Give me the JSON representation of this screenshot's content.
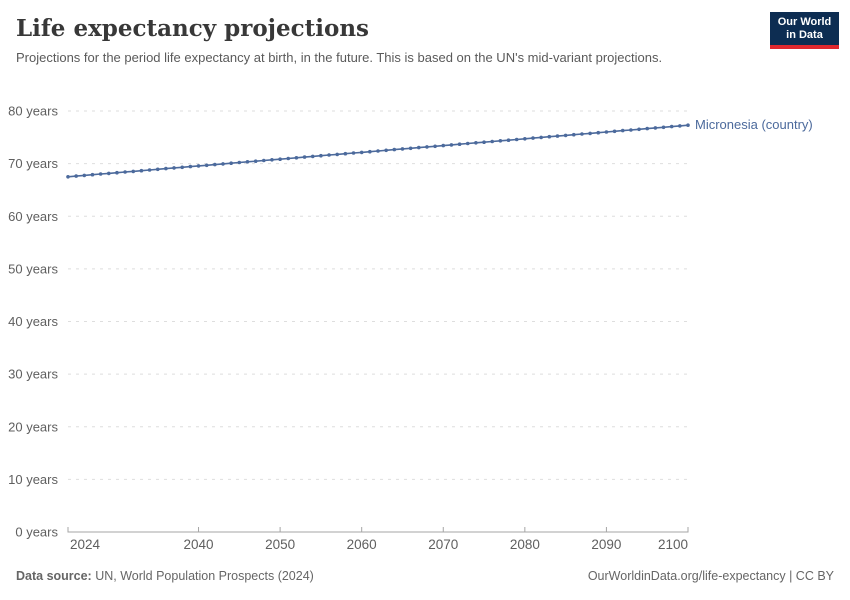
{
  "header": {
    "title": "Life expectancy projections",
    "subtitle": "Projections for the period life expectancy at birth, in the future. This is based on the UN's mid-variant projections.",
    "logo": {
      "line1": "Our World",
      "line2": "in Data"
    }
  },
  "footer": {
    "source_label": "Data source:",
    "source_text": " UN, World Population Prospects (2024)",
    "credit": "OurWorldinData.org/life-expectancy | CC BY"
  },
  "colors": {
    "line": "#4c6a9c",
    "series_label": "#4c6a9c",
    "grid": "#dedede",
    "axis": "#a5a5a5",
    "tick_text": "#5f5f5f",
    "logo_bg": "#0d2d52",
    "logo_red": "#e0282e"
  },
  "chart_data": {
    "type": "line",
    "title": "Life expectancy projections",
    "xlabel": "",
    "ylabel": "years",
    "xlim": [
      2024,
      2100
    ],
    "ylim": [
      0,
      80
    ],
    "grid": "horizontal-dashed",
    "legend_position": "end-of-line-label",
    "y_ticks": [
      0,
      10,
      20,
      30,
      40,
      50,
      60,
      70,
      80
    ],
    "y_tick_suffix": " years",
    "x_ticks": [
      2024,
      2040,
      2050,
      2060,
      2070,
      2080,
      2090,
      2100
    ],
    "series": [
      {
        "name": "Micronesia (country)",
        "x": [
          2024,
          2025,
          2026,
          2027,
          2028,
          2029,
          2030,
          2031,
          2032,
          2033,
          2034,
          2035,
          2036,
          2037,
          2038,
          2039,
          2040,
          2041,
          2042,
          2043,
          2044,
          2045,
          2046,
          2047,
          2048,
          2049,
          2050,
          2051,
          2052,
          2053,
          2054,
          2055,
          2056,
          2057,
          2058,
          2059,
          2060,
          2061,
          2062,
          2063,
          2064,
          2065,
          2066,
          2067,
          2068,
          2069,
          2070,
          2071,
          2072,
          2073,
          2074,
          2075,
          2076,
          2077,
          2078,
          2079,
          2080,
          2081,
          2082,
          2083,
          2084,
          2085,
          2086,
          2087,
          2088,
          2089,
          2090,
          2091,
          2092,
          2093,
          2094,
          2095,
          2096,
          2097,
          2098,
          2099,
          2100
        ],
        "values": [
          67.5,
          67.63,
          67.76,
          67.89,
          68.02,
          68.14,
          68.27,
          68.4,
          68.53,
          68.66,
          68.79,
          68.92,
          69.05,
          69.18,
          69.31,
          69.43,
          69.56,
          69.69,
          69.82,
          69.95,
          70.08,
          70.21,
          70.34,
          70.47,
          70.59,
          70.72,
          70.85,
          70.98,
          71.11,
          71.24,
          71.37,
          71.5,
          71.63,
          71.75,
          71.88,
          72.01,
          72.14,
          72.27,
          72.4,
          72.53,
          72.66,
          72.79,
          72.91,
          73.04,
          73.17,
          73.3,
          73.43,
          73.56,
          73.69,
          73.82,
          73.95,
          74.07,
          74.2,
          74.33,
          74.46,
          74.59,
          74.72,
          74.85,
          74.98,
          75.11,
          75.23,
          75.36,
          75.49,
          75.62,
          75.75,
          75.88,
          76.01,
          76.14,
          76.27,
          76.39,
          76.52,
          76.65,
          76.78,
          76.91,
          77.04,
          77.17,
          77.3
        ]
      }
    ]
  }
}
